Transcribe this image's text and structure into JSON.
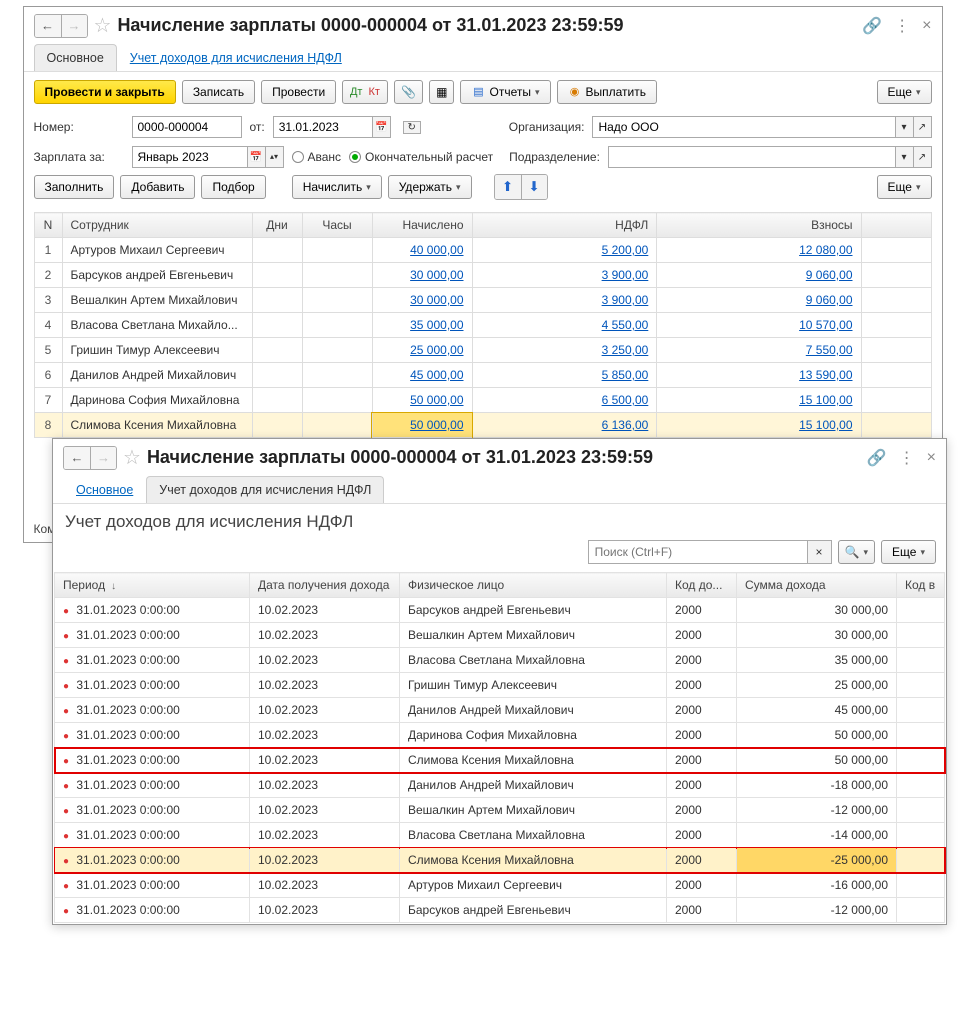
{
  "win1": {
    "title": "Начисление зарплаты 0000-000004 от 31.01.2023 23:59:59",
    "tabs": {
      "main": "Основное",
      "ndfl": "Учет доходов для исчисления НДФЛ"
    },
    "toolbar": {
      "post_close": "Провести и закрыть",
      "write": "Записать",
      "post": "Провести",
      "reports": "Отчеты",
      "pay": "Выплатить",
      "more": "Еще"
    },
    "form": {
      "number_lbl": "Номер:",
      "number": "0000-000004",
      "from_lbl": "от:",
      "from": "31.01.2023",
      "org_lbl": "Организация:",
      "org": "Надо ООО",
      "salary_for_lbl": "Зарплата за:",
      "salary_for": "Январь 2023",
      "advance": "Аванс",
      "final": "Окончательный расчет",
      "dept_lbl": "Подразделение:",
      "dept": ""
    },
    "rowbar": {
      "fill": "Заполнить",
      "add": "Добавить",
      "pick": "Подбор",
      "accrue": "Начислить",
      "hold": "Удержать",
      "more": "Еще"
    },
    "cols": {
      "n": "N",
      "emp": "Сотрудник",
      "days": "Дни",
      "hours": "Часы",
      "acc": "Начислено",
      "ndfl": "НДФЛ",
      "contrib": "Взносы"
    },
    "rows": [
      {
        "n": "1",
        "emp": "Артуров Михаил Сергеевич",
        "acc": "40 000,00",
        "ndfl": "5 200,00",
        "contrib": "12 080,00"
      },
      {
        "n": "2",
        "emp": "Барсуков андрей Евгеньевич",
        "acc": "30 000,00",
        "ndfl": "3 900,00",
        "contrib": "9 060,00"
      },
      {
        "n": "3",
        "emp": "Вешалкин Артем Михайлович",
        "acc": "30 000,00",
        "ndfl": "3 900,00",
        "contrib": "9 060,00"
      },
      {
        "n": "4",
        "emp": "Власова Светлана Михайло...",
        "acc": "35 000,00",
        "ndfl": "4 550,00",
        "contrib": "10 570,00"
      },
      {
        "n": "5",
        "emp": "Гришин Тимур Алексеевич",
        "acc": "25 000,00",
        "ndfl": "3 250,00",
        "contrib": "7 550,00"
      },
      {
        "n": "6",
        "emp": "Данилов Андрей Михайлович",
        "acc": "45 000,00",
        "ndfl": "5 850,00",
        "contrib": "13 590,00"
      },
      {
        "n": "7",
        "emp": "Даринова София Михайловна",
        "acc": "50 000,00",
        "ndfl": "6 500,00",
        "contrib": "15 100,00"
      },
      {
        "n": "8",
        "emp": "Слимова Ксения Михайловна",
        "acc": "50 000,00",
        "ndfl": "6 136,00",
        "contrib": "15 100,00",
        "hl": true
      }
    ],
    "comment_lbl": "Комм"
  },
  "win2": {
    "title": "Начисление зарплаты 0000-000004 от 31.01.2023 23:59:59",
    "tabs": {
      "main": "Основное",
      "ndfl": "Учет доходов для исчисления НДФЛ"
    },
    "subhead": "Учет доходов для исчисления НДФЛ",
    "search_placeholder": "Поиск (Ctrl+F)",
    "more": "Еще",
    "cols": {
      "period": "Период",
      "income_date": "Дата получения дохода",
      "person": "Физическое лицо",
      "code": "Код до...",
      "amount": "Сумма дохода",
      "codev": "Код в"
    },
    "rows": [
      {
        "p": "31.01.2023 0:00:00",
        "d": "10.02.2023",
        "person": "Барсуков андрей Евгеньевич",
        "code": "2000",
        "amt": "30 000,00"
      },
      {
        "p": "31.01.2023 0:00:00",
        "d": "10.02.2023",
        "person": "Вешалкин Артем Михайлович",
        "code": "2000",
        "amt": "30 000,00"
      },
      {
        "p": "31.01.2023 0:00:00",
        "d": "10.02.2023",
        "person": "Власова Светлана Михайловна",
        "code": "2000",
        "amt": "35 000,00"
      },
      {
        "p": "31.01.2023 0:00:00",
        "d": "10.02.2023",
        "person": "Гришин Тимур Алексеевич",
        "code": "2000",
        "amt": "25 000,00"
      },
      {
        "p": "31.01.2023 0:00:00",
        "d": "10.02.2023",
        "person": "Данилов Андрей Михайлович",
        "code": "2000",
        "amt": "45 000,00"
      },
      {
        "p": "31.01.2023 0:00:00",
        "d": "10.02.2023",
        "person": "Даринова София Михайловна",
        "code": "2000",
        "amt": "50 000,00"
      },
      {
        "p": "31.01.2023 0:00:00",
        "d": "10.02.2023",
        "person": "Слимова Ксения Михайловна",
        "code": "2000",
        "amt": "50 000,00",
        "red": true
      },
      {
        "p": "31.01.2023 0:00:00",
        "d": "10.02.2023",
        "person": "Данилов Андрей Михайлович",
        "code": "2000",
        "amt": "-18 000,00"
      },
      {
        "p": "31.01.2023 0:00:00",
        "d": "10.02.2023",
        "person": "Вешалкин Артем Михайлович",
        "code": "2000",
        "amt": "-12 000,00"
      },
      {
        "p": "31.01.2023 0:00:00",
        "d": "10.02.2023",
        "person": "Власова Светлана Михайловна",
        "code": "2000",
        "amt": "-14 000,00"
      },
      {
        "p": "31.01.2023 0:00:00",
        "d": "10.02.2023",
        "person": "Слимова Ксения Михайловна",
        "code": "2000",
        "amt": "-25 000,00",
        "red": true,
        "hl": true
      },
      {
        "p": "31.01.2023 0:00:00",
        "d": "10.02.2023",
        "person": "Артуров Михаил Сергеевич",
        "code": "2000",
        "amt": "-16 000,00"
      },
      {
        "p": "31.01.2023 0:00:00",
        "d": "10.02.2023",
        "person": "Барсуков андрей Евгеньевич",
        "code": "2000",
        "amt": "-12 000,00"
      }
    ]
  },
  "colors": {
    "yellow_btn": "#ffd400",
    "highlight_row": "#fff6d8",
    "highlight_cell": "#ffe27a",
    "red_outline": "#e00000",
    "link": "#0055bb"
  }
}
